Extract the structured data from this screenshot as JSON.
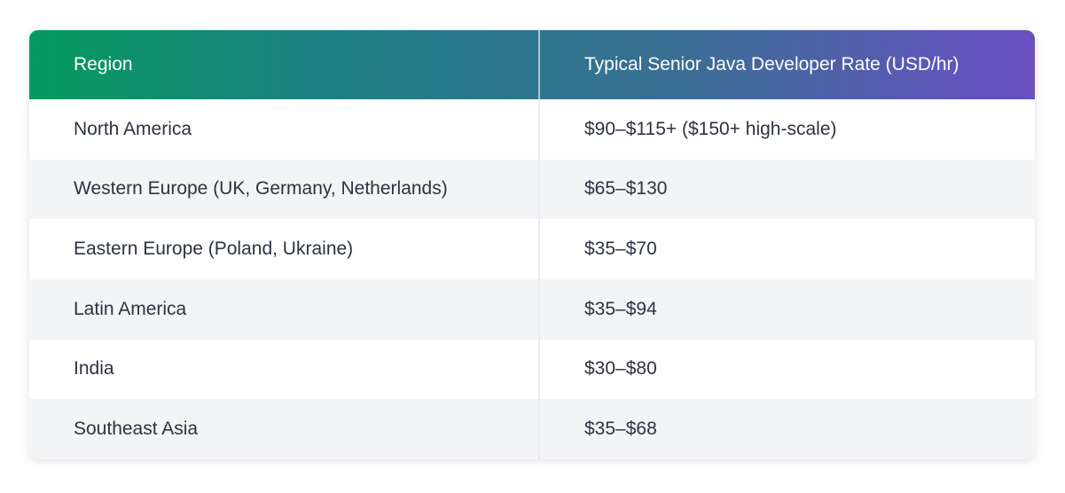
{
  "table": {
    "header": [
      "Region",
      "Typical Senior Java Developer Rate (USD/hr)"
    ],
    "rows": [
      [
        "North America",
        "$90–$115+ ($150+ high-scale)"
      ],
      [
        "Western Europe (UK, Germany, Netherlands)",
        "$65–$130"
      ],
      [
        "Eastern Europe (Poland, Ukraine)",
        "$35–$70"
      ],
      [
        "Latin America",
        "$35–$94"
      ],
      [
        "India",
        "$30–$80"
      ],
      [
        "Southeast Asia",
        "$35–$68"
      ]
    ]
  }
}
